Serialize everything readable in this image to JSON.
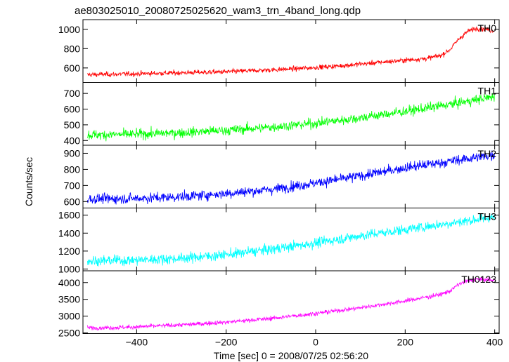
{
  "title": "ae803025010_20080725025620_wam3_trn_4band_long.qdp",
  "xlabel": "Time [sec] 0 = 2008/07/25 02:56:20",
  "ylabel": "Counts/sec",
  "chart_data": {
    "type": "line",
    "title": "ae803025010_20080725025620_wam3_trn_4band_long.qdp",
    "xlabel": "Time [sec] 0 = 2008/07/25 02:56:20",
    "ylabel": "Counts/sec",
    "xlim": [
      -520,
      410
    ],
    "xticks": [
      -400,
      -200,
      0,
      200,
      400
    ],
    "grid": false,
    "panels": [
      {
        "name": "TH0",
        "color": "#ff0000",
        "ylim": [
          450,
          1100
        ],
        "yticks": [
          600,
          800,
          1000
        ],
        "noise": 18,
        "x": [
          -510,
          -450,
          -400,
          -350,
          -300,
          -250,
          -200,
          -150,
          -100,
          -50,
          0,
          50,
          100,
          150,
          200,
          250,
          280,
          300,
          320,
          340,
          360,
          380,
          400
        ],
        "y": [
          530,
          535,
          540,
          545,
          550,
          555,
          560,
          570,
          580,
          590,
          605,
          620,
          640,
          660,
          680,
          700,
          730,
          790,
          900,
          980,
          1010,
          1000,
          985
        ]
      },
      {
        "name": "TH1",
        "color": "#00ff00",
        "ylim": [
          370,
          770
        ],
        "yticks": [
          400,
          500,
          600,
          700
        ],
        "noise": 22,
        "x": [
          -510,
          -400,
          -300,
          -200,
          -100,
          0,
          100,
          200,
          300,
          400
        ],
        "y": [
          435,
          440,
          450,
          465,
          485,
          510,
          545,
          585,
          630,
          680
        ]
      },
      {
        "name": "TH2",
        "color": "#0000ff",
        "ylim": [
          560,
          950
        ],
        "yticks": [
          600,
          700,
          800,
          900
        ],
        "noise": 22,
        "x": [
          -510,
          -400,
          -300,
          -200,
          -100,
          0,
          100,
          200,
          300,
          400
        ],
        "y": [
          615,
          620,
          630,
          650,
          675,
          715,
          760,
          810,
          850,
          890
        ]
      },
      {
        "name": "TH3",
        "color": "#00ffff",
        "ylim": [
          980,
          1680
        ],
        "yticks": [
          1000,
          1200,
          1400,
          1600
        ],
        "noise": 40,
        "x": [
          -510,
          -400,
          -300,
          -200,
          -100,
          0,
          100,
          200,
          300,
          400
        ],
        "y": [
          1090,
          1100,
          1120,
          1160,
          1220,
          1290,
          1370,
          1440,
          1510,
          1580
        ]
      },
      {
        "name": "TH0123",
        "color": "#ff00ff",
        "ylim": [
          2480,
          4350
        ],
        "yticks": [
          2500,
          3000,
          3500,
          4000
        ],
        "noise": 45,
        "x": [
          -510,
          -450,
          -400,
          -300,
          -200,
          -100,
          0,
          100,
          200,
          280,
          300,
          320,
          340,
          360,
          380,
          400
        ],
        "y": [
          2650,
          2660,
          2680,
          2740,
          2820,
          2930,
          3080,
          3250,
          3450,
          3650,
          3750,
          3950,
          4050,
          4100,
          4080,
          4060
        ]
      }
    ]
  }
}
